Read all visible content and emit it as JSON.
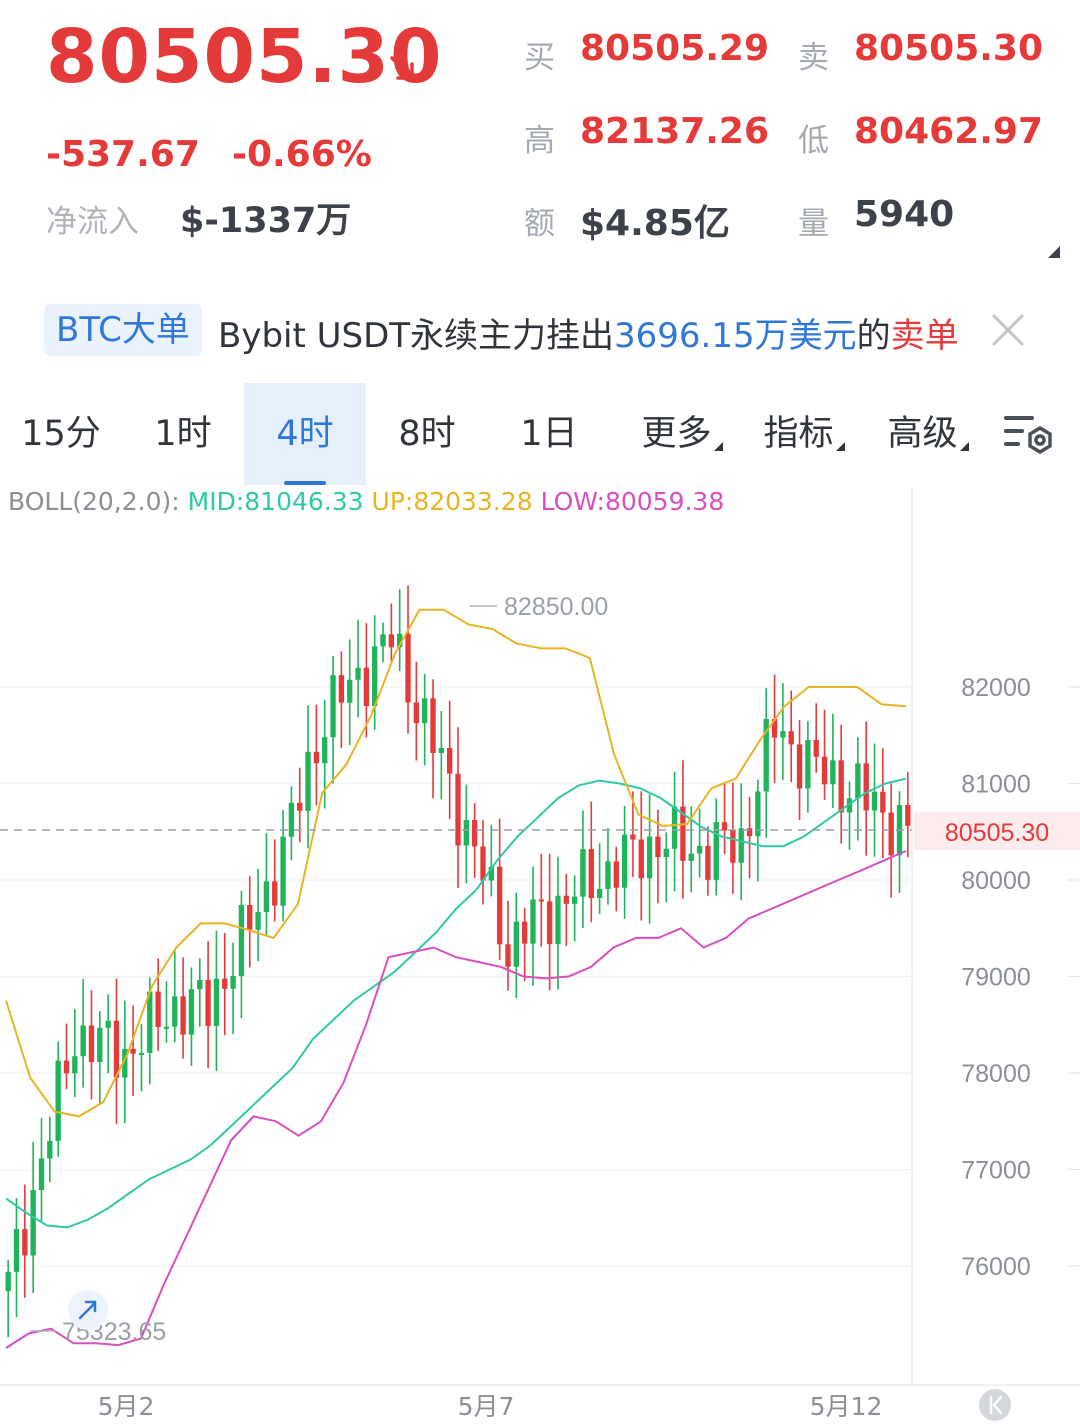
{
  "quote": {
    "last_price": "80505.30",
    "change": "-537.67",
    "change_pct": "-0.66%",
    "net_inflow_label": "净流入",
    "net_inflow_value": "$-1337万",
    "bid_label": "买",
    "bid": "80505.29",
    "ask_label": "卖",
    "ask": "80505.30",
    "high_label": "高",
    "high": "82137.26",
    "low_label": "低",
    "low": "80462.97",
    "amount_label": "额",
    "amount": "$4.85亿",
    "volume_label": "量",
    "volume": "5940"
  },
  "news": {
    "badge": "BTC大单",
    "prefix": "Bybit USDT永续主力挂出",
    "amount": "3696.15万美元",
    "middle": "的",
    "side": "卖单"
  },
  "tabs": [
    {
      "label": "15分"
    },
    {
      "label": "1时"
    },
    {
      "label": "4时",
      "active": true
    },
    {
      "label": "8时"
    },
    {
      "label": "1日"
    },
    {
      "label": "更多",
      "dropdown": true
    },
    {
      "label": "指标",
      "dropdown": true
    },
    {
      "label": "高级",
      "dropdown": true
    }
  ],
  "indicator": {
    "name": "BOLL(20,2.0):",
    "mid": "MID:81046.33",
    "up": "UP:82033.28",
    "low": "LOW:80059.38"
  },
  "icons": [
    "down-right-arrow-icon",
    "close-icon",
    "chart-settings-icon",
    "collapse-left-icon"
  ],
  "colors": {
    "up": "#1fb35a",
    "down": "#e53a3a",
    "mid": "#2fc9a5",
    "upper": "#e8b426",
    "lower": "#d84fbf",
    "accent": "#2f78d8"
  },
  "chart_data": {
    "type": "candlestick",
    "y_ticks": [
      82000,
      81000,
      80000,
      79000,
      78000,
      77000,
      76000
    ],
    "ylim": [
      75000,
      83800
    ],
    "x_tick_labels": [
      "5月2",
      "5月7",
      "5月12"
    ],
    "current_price_label": "80505.30",
    "max_label": "82850.00",
    "min_label": "75323.65",
    "series": [
      {
        "name": "MID",
        "values": [
          76700,
          76550,
          76420,
          76400,
          76480,
          76600,
          76750,
          76900,
          77000,
          77100,
          77250,
          77450,
          77650,
          77850,
          78050,
          78350,
          78550,
          78750,
          78900,
          79050,
          79250,
          79450,
          79700,
          79900,
          80200,
          80450,
          80650,
          80850,
          80980,
          81030,
          81000,
          80950,
          80850,
          80700,
          80550,
          80450,
          80400,
          80350,
          80350,
          80450,
          80600,
          80750,
          80900,
          81000,
          81050
        ]
      },
      {
        "name": "UP",
        "values": [
          78750,
          77950,
          77600,
          77550,
          77700,
          78200,
          78900,
          79300,
          79550,
          79550,
          79480,
          79400,
          79750,
          80900,
          81200,
          81700,
          82350,
          82800,
          82800,
          82650,
          82600,
          82450,
          82400,
          82400,
          82300,
          81300,
          80680,
          80560,
          80580,
          80950,
          81050,
          81450,
          81800,
          82000,
          82000,
          82000,
          81820,
          81800
        ]
      },
      {
        "name": "LOW",
        "values": [
          75150,
          75300,
          75350,
          75200,
          75200,
          75180,
          75250,
          75800,
          76300,
          76800,
          77300,
          77550,
          77500,
          77350,
          77500,
          77900,
          78500,
          79200,
          79250,
          79300,
          79200,
          79150,
          79100,
          79000,
          78980,
          79000,
          79100,
          79300,
          79400,
          79400,
          79500,
          79300,
          79400,
          79600,
          79700,
          79800,
          79900,
          80000,
          80100,
          80200,
          80300
        ]
      }
    ]
  }
}
